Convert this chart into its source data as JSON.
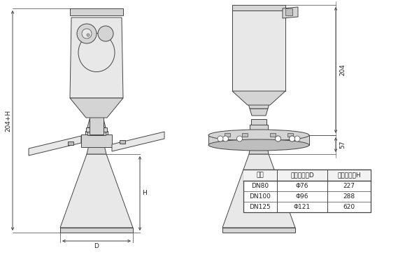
{
  "bg_color": "#ffffff",
  "line_color": "#444444",
  "fill_light": "#e8e8e8",
  "fill_mid": "#d4d4d4",
  "fill_dark": "#bebebe",
  "table_headers": [
    "法兰",
    "喇叭口直径D",
    "喇叭口高度H"
  ],
  "table_rows": [
    [
      "DN80",
      "Φ76",
      "227"
    ],
    [
      "DN100",
      "Φ96",
      "288"
    ],
    [
      "DN125",
      "Φ121",
      "620"
    ]
  ],
  "dim_204": "204",
  "dim_57": "57",
  "dim_H": "H",
  "dim_204H": "204+H",
  "dim_D": "D",
  "fs_table": 6.5,
  "fs_dim": 6.5
}
